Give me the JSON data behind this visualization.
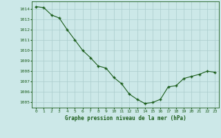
{
  "x": [
    0,
    1,
    2,
    3,
    4,
    5,
    6,
    7,
    8,
    9,
    10,
    11,
    12,
    13,
    14,
    15,
    16,
    17,
    18,
    19,
    20,
    21,
    22,
    23
  ],
  "y": [
    1014.2,
    1014.1,
    1013.4,
    1013.1,
    1012.0,
    1011.0,
    1010.0,
    1009.3,
    1008.5,
    1008.3,
    1007.4,
    1006.8,
    1005.8,
    1005.3,
    1004.9,
    1005.0,
    1005.3,
    1006.5,
    1006.6,
    1007.3,
    1007.5,
    1007.7,
    1008.0,
    1007.9
  ],
  "line_color": "#1a5c1a",
  "marker": "+",
  "marker_size": 3.5,
  "background_color": "#cce8e8",
  "grid_color": "#aacccc",
  "xlabel": "Graphe pression niveau de la mer (hPa)",
  "xlabel_color": "#1a5c1a",
  "tick_color": "#1a5c1a",
  "ylim": [
    1004.5,
    1014.7
  ],
  "xlim": [
    -0.5,
    23.5
  ],
  "yticks": [
    1005,
    1006,
    1007,
    1008,
    1009,
    1010,
    1011,
    1012,
    1013,
    1014
  ],
  "xticks": [
    0,
    1,
    2,
    3,
    4,
    5,
    6,
    7,
    8,
    9,
    10,
    11,
    12,
    13,
    14,
    15,
    16,
    17,
    18,
    19,
    20,
    21,
    22,
    23
  ]
}
